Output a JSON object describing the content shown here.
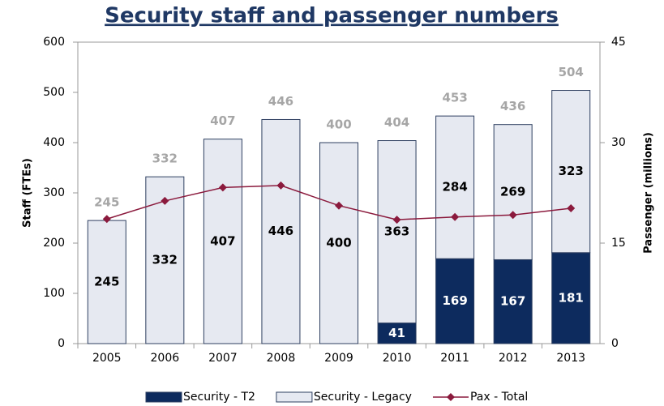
{
  "chart_data": {
    "type": "stacked-bar-line",
    "title": "Security staff and passenger numbers",
    "y_label": "Staff (FTEs)",
    "y2_label": "Passenger (millions)",
    "categories": [
      "2005",
      "2006",
      "2007",
      "2008",
      "2009",
      "2010",
      "2011",
      "2012",
      "2013"
    ],
    "series": [
      {
        "name": "Security - T2",
        "type": "bar",
        "color": "#0d2b5e",
        "values": [
          null,
          null,
          null,
          null,
          null,
          41,
          169,
          167,
          181
        ]
      },
      {
        "name": "Security - Legacy",
        "type": "bar",
        "color": "#e6e9f1",
        "values": [
          245,
          332,
          407,
          446,
          400,
          363,
          284,
          269,
          323
        ]
      },
      {
        "name": "Pax - Total",
        "type": "line",
        "axis": "y2",
        "color": "#8b1a3d",
        "values": [
          18.6,
          21.3,
          23.3,
          23.6,
          20.6,
          18.5,
          18.9,
          19.2,
          20.2
        ]
      }
    ],
    "totals": [
      245,
      332,
      407,
      446,
      400,
      404,
      453,
      436,
      504
    ],
    "ylim": [
      0,
      600
    ],
    "yticks": [
      0,
      100,
      200,
      300,
      400,
      500,
      600
    ],
    "y2lim": [
      0,
      45
    ],
    "y2ticks": [
      0,
      15,
      30,
      45
    ],
    "grid": false
  }
}
